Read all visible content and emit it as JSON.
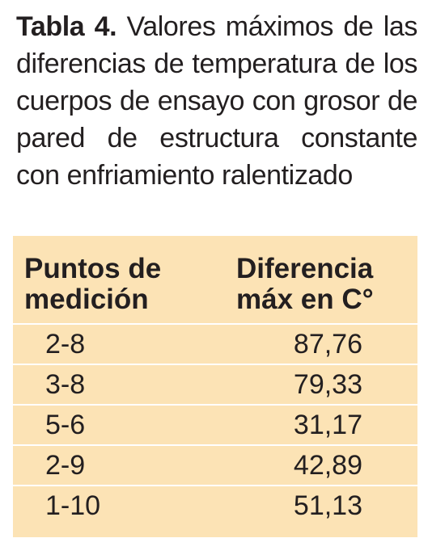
{
  "caption": {
    "label": "Tabla 4.",
    "text": " Valores máximos de las diferencias de temperatura de los cuerpos de ensayo con grosor de pared de estructura constante con enfriamiento ralentizado"
  },
  "table": {
    "headers": {
      "points_line1": "Puntos de",
      "points_line2": "medición",
      "diff_line1": "Diferencia",
      "diff_line2": "máx en C°"
    },
    "rows": [
      {
        "points": "2-8",
        "value": "87,76"
      },
      {
        "points": "3-8",
        "value": "79,33"
      },
      {
        "points": "5-6",
        "value": "31,17"
      },
      {
        "points": "2-9",
        "value": "42,89"
      },
      {
        "points": "1-10",
        "value": "51,13"
      }
    ]
  },
  "colors": {
    "table_background": "#fce3b5",
    "row_separator": "#ffffff",
    "text": "#231f20"
  }
}
